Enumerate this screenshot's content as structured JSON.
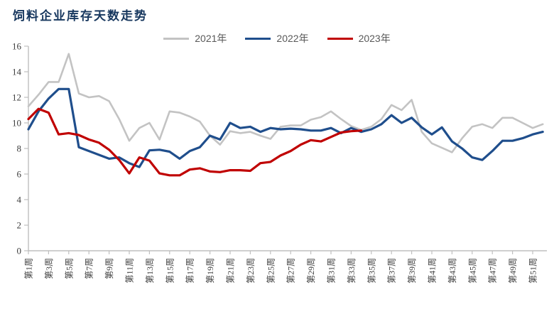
{
  "title": "饲料企业库存天数走势",
  "chart_data": {
    "type": "line",
    "title": "饲料企业库存天数走势",
    "xlabel": "",
    "ylabel": "",
    "ylim": [
      0,
      16
    ],
    "y_ticks": [
      0,
      2,
      4,
      6,
      8,
      10,
      12,
      14,
      16
    ],
    "grid": false,
    "legend_position": "top",
    "x_unit": "week",
    "x_tick_labels": [
      "第1周",
      "第3周",
      "第5周",
      "第7周",
      "第9周",
      "第11周",
      "第13周",
      "第15周",
      "第17周",
      "第19周",
      "第21周",
      "第23周",
      "第25周",
      "第27周",
      "第29周",
      "第31周",
      "第33周",
      "第35周",
      "第37周",
      "第39周",
      "第41周",
      "第43周",
      "第45周",
      "第47周",
      "第49周",
      "第51周"
    ],
    "series": [
      {
        "name": "2021年",
        "color": "#c3c3c3",
        "values": [
          11.3,
          12.2,
          13.2,
          13.2,
          15.4,
          12.3,
          12.0,
          12.1,
          11.7,
          10.3,
          8.6,
          9.6,
          10.0,
          8.7,
          10.9,
          10.8,
          10.5,
          10.1,
          9.0,
          8.3,
          9.35,
          9.2,
          9.3,
          9.0,
          8.75,
          9.7,
          9.8,
          9.8,
          10.25,
          10.45,
          10.9,
          10.3,
          9.75,
          9.45,
          9.7,
          10.3,
          11.4,
          11.0,
          11.8,
          9.3,
          8.4,
          8.05,
          7.7,
          8.8,
          9.7,
          9.9,
          9.6,
          10.4,
          10.4,
          10.0,
          9.6,
          9.9
        ]
      },
      {
        "name": "2022年",
        "color": "#1f4e8c",
        "values": [
          9.5,
          10.9,
          11.9,
          12.65,
          12.65,
          8.1,
          7.8,
          7.5,
          7.2,
          7.3,
          6.85,
          6.55,
          7.85,
          7.9,
          7.75,
          7.2,
          7.8,
          8.1,
          9.0,
          8.7,
          10.0,
          9.6,
          9.7,
          9.3,
          9.6,
          9.5,
          9.55,
          9.5,
          9.4,
          9.4,
          9.6,
          9.2,
          9.6,
          9.3,
          9.5,
          9.9,
          10.6,
          10.0,
          10.4,
          9.65,
          9.1,
          9.65,
          8.55,
          8.0,
          7.3,
          7.1,
          7.8,
          8.6,
          8.6,
          8.8,
          9.1,
          9.3
        ]
      },
      {
        "name": "2023年",
        "color": "#c00000",
        "values": [
          10.3,
          11.1,
          10.8,
          9.1,
          9.2,
          9.05,
          8.7,
          8.45,
          7.9,
          7.1,
          6.05,
          7.3,
          7.05,
          6.05,
          5.9,
          5.9,
          6.35,
          6.45,
          6.2,
          6.15,
          6.3,
          6.3,
          6.25,
          6.85,
          6.95,
          7.45,
          7.8,
          8.3,
          8.65,
          8.55,
          8.9,
          9.25,
          9.35,
          9.4
        ]
      }
    ]
  }
}
